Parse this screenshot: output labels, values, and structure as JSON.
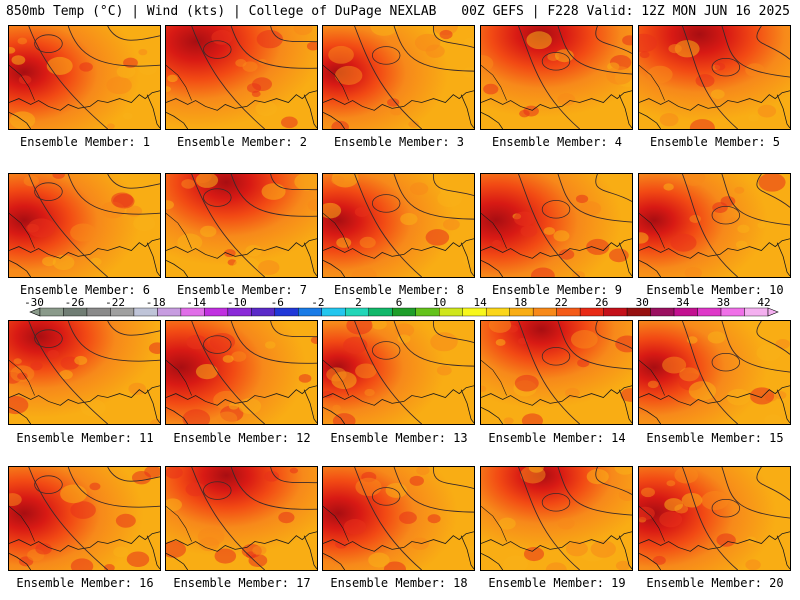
{
  "header": {
    "left_title": "850mb Temp (°C) | Wind (kts) | College of DuPage NEXLAB",
    "right_title": "00Z GEFS | F228 Valid: 12Z MON JUN 16 2025"
  },
  "panels": [
    {
      "label": "Ensemble Member: 1",
      "warmth": 0.55,
      "hot_spot": "west"
    },
    {
      "label": "Ensemble Member: 2",
      "warmth": 0.75,
      "hot_spot": "northwest"
    },
    {
      "label": "Ensemble Member: 3",
      "warmth": 0.45,
      "hot_spot": "west"
    },
    {
      "label": "Ensemble Member: 4",
      "warmth": 0.65,
      "hot_spot": "north"
    },
    {
      "label": "Ensemble Member: 5",
      "warmth": 0.75,
      "hot_spot": "north"
    },
    {
      "label": "Ensemble Member: 6",
      "warmth": 0.55,
      "hot_spot": "west"
    },
    {
      "label": "Ensemble Member: 7",
      "warmth": 0.65,
      "hot_spot": "north"
    },
    {
      "label": "Ensemble Member: 8",
      "warmth": 0.55,
      "hot_spot": "west"
    },
    {
      "label": "Ensemble Member: 9",
      "warmth": 0.7,
      "hot_spot": "west"
    },
    {
      "label": "Ensemble Member: 10",
      "warmth": 0.5,
      "hot_spot": "west"
    },
    {
      "label": "Ensemble Member: 11",
      "warmth": 0.6,
      "hot_spot": "northwest"
    },
    {
      "label": "Ensemble Member: 12",
      "warmth": 0.7,
      "hot_spot": "west"
    },
    {
      "label": "Ensemble Member: 13",
      "warmth": 0.4,
      "hot_spot": "west"
    },
    {
      "label": "Ensemble Member: 14",
      "warmth": 0.55,
      "hot_spot": "north"
    },
    {
      "label": "Ensemble Member: 15",
      "warmth": 0.5,
      "hot_spot": "west"
    },
    {
      "label": "Ensemble Member: 16",
      "warmth": 0.6,
      "hot_spot": "west"
    },
    {
      "label": "Ensemble Member: 17",
      "warmth": 0.6,
      "hot_spot": "north"
    },
    {
      "label": "Ensemble Member: 18",
      "warmth": 0.6,
      "hot_spot": "west"
    },
    {
      "label": "Ensemble Member: 19",
      "warmth": 0.5,
      "hot_spot": "north"
    },
    {
      "label": "Ensemble Member: 20",
      "warmth": 0.65,
      "hot_spot": "west"
    }
  ],
  "colorbar": {
    "ticks": [
      "-30",
      "-26",
      "-22",
      "-18",
      "-14",
      "-10",
      "-6",
      "-2",
      "2",
      "6",
      "10",
      "14",
      "18",
      "22",
      "26",
      "30",
      "34",
      "38",
      "42"
    ],
    "colors": [
      "#8a9a8a",
      "#707d74",
      "#8a8a8a",
      "#a0a0a0",
      "#bfc4d8",
      "#c79ce0",
      "#e06ee8",
      "#c030e0",
      "#8a2ad8",
      "#5a2ac8",
      "#2038d8",
      "#1a7be6",
      "#23c6ee",
      "#22d6b8",
      "#12b86a",
      "#1e9e2a",
      "#64c21c",
      "#cfe61c",
      "#f7f71c",
      "#fbd61a",
      "#f9ad14",
      "#f7891a",
      "#f45a18",
      "#e82a16",
      "#c4101a",
      "#961010",
      "#9a1060",
      "#c21090",
      "#de38c8",
      "#f070e8",
      "#f4b0f0"
    ]
  }
}
